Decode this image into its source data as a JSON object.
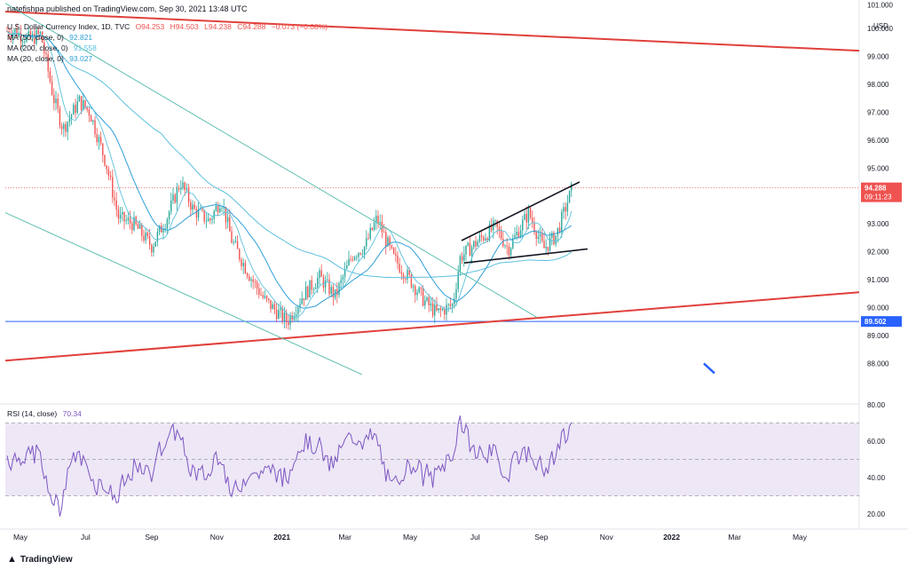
{
  "header": {
    "published": "natefishpa published on TradingView.com, Sep 30, 2021 13:48 UTC"
  },
  "legend": {
    "symbol": "U.S. Dollar Currency Index, 1D, TVC",
    "o": "O94.253",
    "h": "H94.503",
    "l": "L94.238",
    "c": "C94.288",
    "chg": "−0.073 (−0.08%)",
    "ma50": "MA (50, close, 0)",
    "ma50_val": "92.821",
    "ma200": "MA (200, close, 0)",
    "ma200_val": "91.558",
    "ma20": "MA (20, close, 0)",
    "ma20_val": "93.027",
    "rsi": "RSI (14, close)",
    "rsi_val": "70.34"
  },
  "footer": {
    "brand": "TradingView"
  },
  "colors": {
    "up": "#26a69a",
    "down": "#ef5350",
    "red_line": "#e0403b",
    "ma_blue": "#5bc0de",
    "ma_dark": "#2f9fd8",
    "teal": "#5fbfb0",
    "rsi": "#7e57c2",
    "rsi_band": "#ede7f6",
    "hline": "#2962ff",
    "price_tag": "#ef5350"
  },
  "chart_data": [
    {
      "type": "candlestick",
      "title": "U.S. Dollar Currency Index, 1D, TVC",
      "y_unit": "USD",
      "ylim": [
        87.5,
        101.0
      ],
      "yticks": [
        "88.000",
        "89.000",
        "90.000",
        "91.000",
        "92.000",
        "93.000",
        "94.000",
        "95.000",
        "96.000",
        "97.000",
        "98.000",
        "99.000",
        "100.000"
      ],
      "top_tick": "101.000",
      "x_labels": [
        "May",
        "Jul",
        "Sep",
        "Nov",
        "2021",
        "Mar",
        "May",
        "Jul",
        "Sep",
        "Nov",
        "2022",
        "Mar",
        "May"
      ],
      "last_price": "94.288",
      "countdown": "09:11:23",
      "hline_value": "89.502",
      "price_path": [
        [
          "2020-04-25",
          99.9
        ],
        [
          "2020-05-10",
          99.6
        ],
        [
          "2020-05-20",
          99.8
        ],
        [
          "2020-06-01",
          97.5
        ],
        [
          "2020-06-10",
          96.4
        ],
        [
          "2020-06-25",
          97.4
        ],
        [
          "2020-07-05",
          97.0
        ],
        [
          "2020-07-20",
          95.2
        ],
        [
          "2020-08-01",
          93.2
        ],
        [
          "2020-08-15",
          93.0
        ],
        [
          "2020-09-01",
          92.2
        ],
        [
          "2020-09-15",
          93.2
        ],
        [
          "2020-09-28",
          94.5
        ],
        [
          "2020-10-10",
          93.5
        ],
        [
          "2020-10-25",
          93.1
        ],
        [
          "2020-11-05",
          93.9
        ],
        [
          "2020-11-15",
          92.4
        ],
        [
          "2020-12-01",
          91.2
        ],
        [
          "2020-12-15",
          90.3
        ],
        [
          "2021-01-06",
          89.5
        ],
        [
          "2021-01-20",
          90.4
        ],
        [
          "2021-02-05",
          91.1
        ],
        [
          "2021-02-20",
          90.4
        ],
        [
          "2021-03-08",
          91.9
        ],
        [
          "2021-03-20",
          92.2
        ],
        [
          "2021-03-31",
          93.2
        ],
        [
          "2021-04-15",
          91.8
        ],
        [
          "2021-05-01",
          91.0
        ],
        [
          "2021-05-15",
          90.2
        ],
        [
          "2021-05-26",
          89.8
        ],
        [
          "2021-06-10",
          90.1
        ],
        [
          "2021-06-17",
          91.8
        ],
        [
          "2021-07-07",
          92.5
        ],
        [
          "2021-07-20",
          92.9
        ],
        [
          "2021-08-01",
          92.1
        ],
        [
          "2021-08-20",
          93.4
        ],
        [
          "2021-09-03",
          92.1
        ],
        [
          "2021-09-15",
          92.6
        ],
        [
          "2021-09-30",
          94.3
        ]
      ],
      "series": [
        {
          "name": "MA (50, close, 0)",
          "last": 92.821
        },
        {
          "name": "MA (200, close, 0)",
          "last": 91.558
        },
        {
          "name": "MA (20, close, 0)",
          "last": 93.027
        }
      ]
    },
    {
      "type": "line",
      "title": "RSI (14, close)",
      "ylim": [
        15,
        80
      ],
      "yticks": [
        "20.00",
        "40.00",
        "60.00"
      ],
      "top_tick": "80.00",
      "band": [
        30,
        70
      ],
      "mid": 50,
      "last": 70.34
    }
  ]
}
